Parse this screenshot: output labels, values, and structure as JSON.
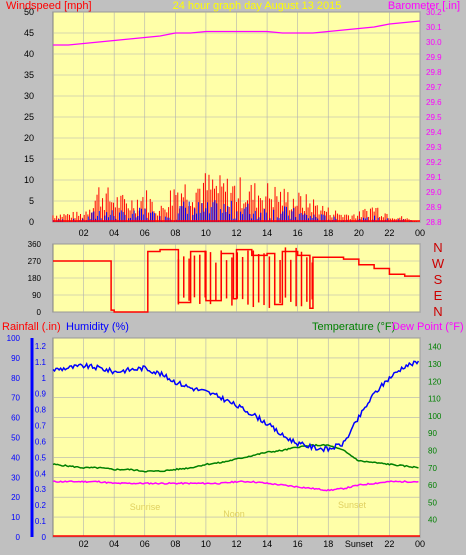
{
  "header": {
    "title": "24 hour graph day   August 13 2015",
    "wind_label": "Windspeed [mph]",
    "baro_label": "Barometer [.in]"
  },
  "colors": {
    "background": "#c0c0c0",
    "plot_bg": "#ffffa8",
    "grid": "#b0b0b0",
    "wind": "#ff0000",
    "gust_avg": "#0000ff",
    "barometer": "#ff00ff",
    "humidity": "#0000ff",
    "temperature": "#008000",
    "dewpoint": "#ff00ff",
    "rainfall": "#ff0000",
    "title_text": "#ffff00"
  },
  "x_ticks": [
    "02",
    "04",
    "06",
    "08",
    "10",
    "12",
    "14",
    "16",
    "18",
    "20",
    "22",
    "00"
  ],
  "bottom_ticks": [
    "02",
    "04",
    "06",
    "08",
    "10",
    "12",
    "14",
    "16",
    "18",
    "Sunset",
    "22",
    "00"
  ],
  "direction_labels": [
    "N",
    "W",
    "S",
    "E",
    "N"
  ],
  "panel3": {
    "rain_label": "Rainfall (.in)",
    "humidity_label": "Humidity (%)",
    "temp_label": "Temperature (°F)",
    "dew_label": "Dew Point (°F)",
    "annotations": [
      "Sunrise",
      "Noon",
      "Sunset"
    ]
  },
  "chart_data": [
    {
      "type": "line",
      "panel": "wind-barometer",
      "ylabel_left": "Windspeed [mph]",
      "ylabel_right": "Barometer [.in]",
      "ylim_left": [
        0,
        50
      ],
      "left_ticks": [
        0,
        5,
        10,
        15,
        20,
        25,
        30,
        35,
        40,
        45,
        50
      ],
      "ylim_right": [
        28.8,
        30.2
      ],
      "right_ticks": [
        28.8,
        28.9,
        29.0,
        29.1,
        29.2,
        29.3,
        29.4,
        29.5,
        29.6,
        29.7,
        29.8,
        29.9,
        30.0,
        30.1,
        30.2
      ],
      "series": [
        {
          "name": "Barometer",
          "axis": "right",
          "x": [
            0,
            1,
            2,
            3,
            4,
            5,
            6,
            7,
            8,
            9,
            10,
            11,
            12,
            13,
            14,
            15,
            16,
            17,
            18,
            19,
            20,
            21,
            22,
            23,
            24
          ],
          "y": [
            29.98,
            29.98,
            29.99,
            30.0,
            30.01,
            30.02,
            30.03,
            30.04,
            30.06,
            30.06,
            30.07,
            30.07,
            30.07,
            30.07,
            30.07,
            30.06,
            30.06,
            30.06,
            30.07,
            30.08,
            30.09,
            30.1,
            30.12,
            30.13,
            30.14
          ]
        },
        {
          "name": "Windspeed",
          "axis": "left",
          "x": [
            0,
            1,
            2,
            3,
            4,
            5,
            6,
            7,
            8,
            9,
            10,
            11,
            12,
            13,
            14,
            15,
            16,
            17,
            18,
            19,
            20,
            21,
            22,
            23,
            24
          ],
          "y": [
            1,
            1,
            1,
            5,
            4,
            3,
            5,
            2,
            6,
            7,
            6,
            7,
            6,
            6,
            5,
            5,
            4,
            3,
            2,
            1,
            1,
            2,
            1,
            1,
            0
          ],
          "gust": [
            2,
            2,
            2,
            8,
            6,
            5,
            7,
            3,
            9,
            9,
            10,
            9,
            9,
            8,
            8,
            7,
            6,
            5,
            3,
            2,
            2,
            4,
            2,
            1,
            0
          ]
        }
      ]
    },
    {
      "type": "line",
      "panel": "wind-direction",
      "ylim": [
        0,
        360
      ],
      "y_ticks": [
        0,
        90,
        180,
        270,
        360
      ],
      "series": [
        {
          "name": "Wind direction",
          "x": [
            0,
            1,
            2,
            3,
            3.8,
            4,
            5,
            6,
            6.2,
            7,
            8,
            8.2,
            9,
            10,
            11,
            11.8,
            12,
            13,
            14,
            14.5,
            15,
            16,
            16.8,
            17,
            18,
            19,
            20,
            21,
            22,
            23,
            24
          ],
          "y": [
            270,
            270,
            270,
            270,
            10,
            0,
            0,
            0,
            320,
            330,
            330,
            50,
            320,
            60,
            310,
            70,
            330,
            300,
            310,
            40,
            320,
            300,
            20,
            290,
            290,
            280,
            250,
            230,
            200,
            190,
            190
          ]
        }
      ]
    },
    {
      "type": "line",
      "panel": "temperature-humidity",
      "ylabel_left": "Humidity (%)",
      "ylim_left": [
        0,
        100
      ],
      "left_ticks": [
        0,
        10,
        20,
        30,
        40,
        50,
        60,
        70,
        80,
        90,
        100
      ],
      "rain_ticks": [
        0,
        0.1,
        0.2,
        0.3,
        0.4,
        0.5,
        0.6,
        0.7,
        0.8,
        0.9,
        1,
        1.1,
        1.2
      ],
      "ylabel_right": "Temperature (°F)",
      "ylim_right": [
        30,
        145
      ],
      "right_ticks": [
        40,
        50,
        60,
        70,
        80,
        90,
        100,
        110,
        120,
        130,
        140
      ],
      "series": [
        {
          "name": "Humidity",
          "axis": "left",
          "x": [
            0,
            1,
            2,
            3,
            4,
            5,
            6,
            7,
            8,
            9,
            10,
            11,
            12,
            13,
            14,
            15,
            16,
            17,
            18,
            19,
            20,
            21,
            22,
            23,
            24
          ],
          "y": [
            84,
            85,
            86,
            85,
            83,
            84,
            85,
            82,
            78,
            75,
            73,
            70,
            66,
            62,
            57,
            51,
            47,
            45,
            44,
            47,
            60,
            72,
            80,
            86,
            88
          ]
        },
        {
          "name": "Temperature",
          "axis": "right",
          "x": [
            0,
            1,
            2,
            3,
            4,
            5,
            6,
            7,
            8,
            9,
            10,
            11,
            12,
            13,
            14,
            15,
            16,
            17,
            18,
            19,
            20,
            21,
            22,
            23,
            24
          ],
          "y": [
            72,
            71,
            70,
            70,
            69,
            69,
            68,
            68,
            69,
            70,
            72,
            73,
            75,
            77,
            79,
            80,
            82,
            83,
            83,
            80,
            74,
            73,
            72,
            71,
            70
          ]
        },
        {
          "name": "Dew Point",
          "axis": "right",
          "x": [
            0,
            1,
            2,
            3,
            4,
            5,
            6,
            7,
            8,
            9,
            10,
            11,
            12,
            13,
            14,
            15,
            16,
            17,
            18,
            19,
            20,
            21,
            22,
            23,
            24
          ],
          "y": [
            62,
            62,
            62,
            62,
            61,
            61,
            61,
            61,
            61,
            61,
            61,
            61,
            62,
            62,
            61,
            60,
            59,
            58,
            57,
            58,
            60,
            61,
            62,
            62,
            62
          ]
        }
      ]
    }
  ]
}
